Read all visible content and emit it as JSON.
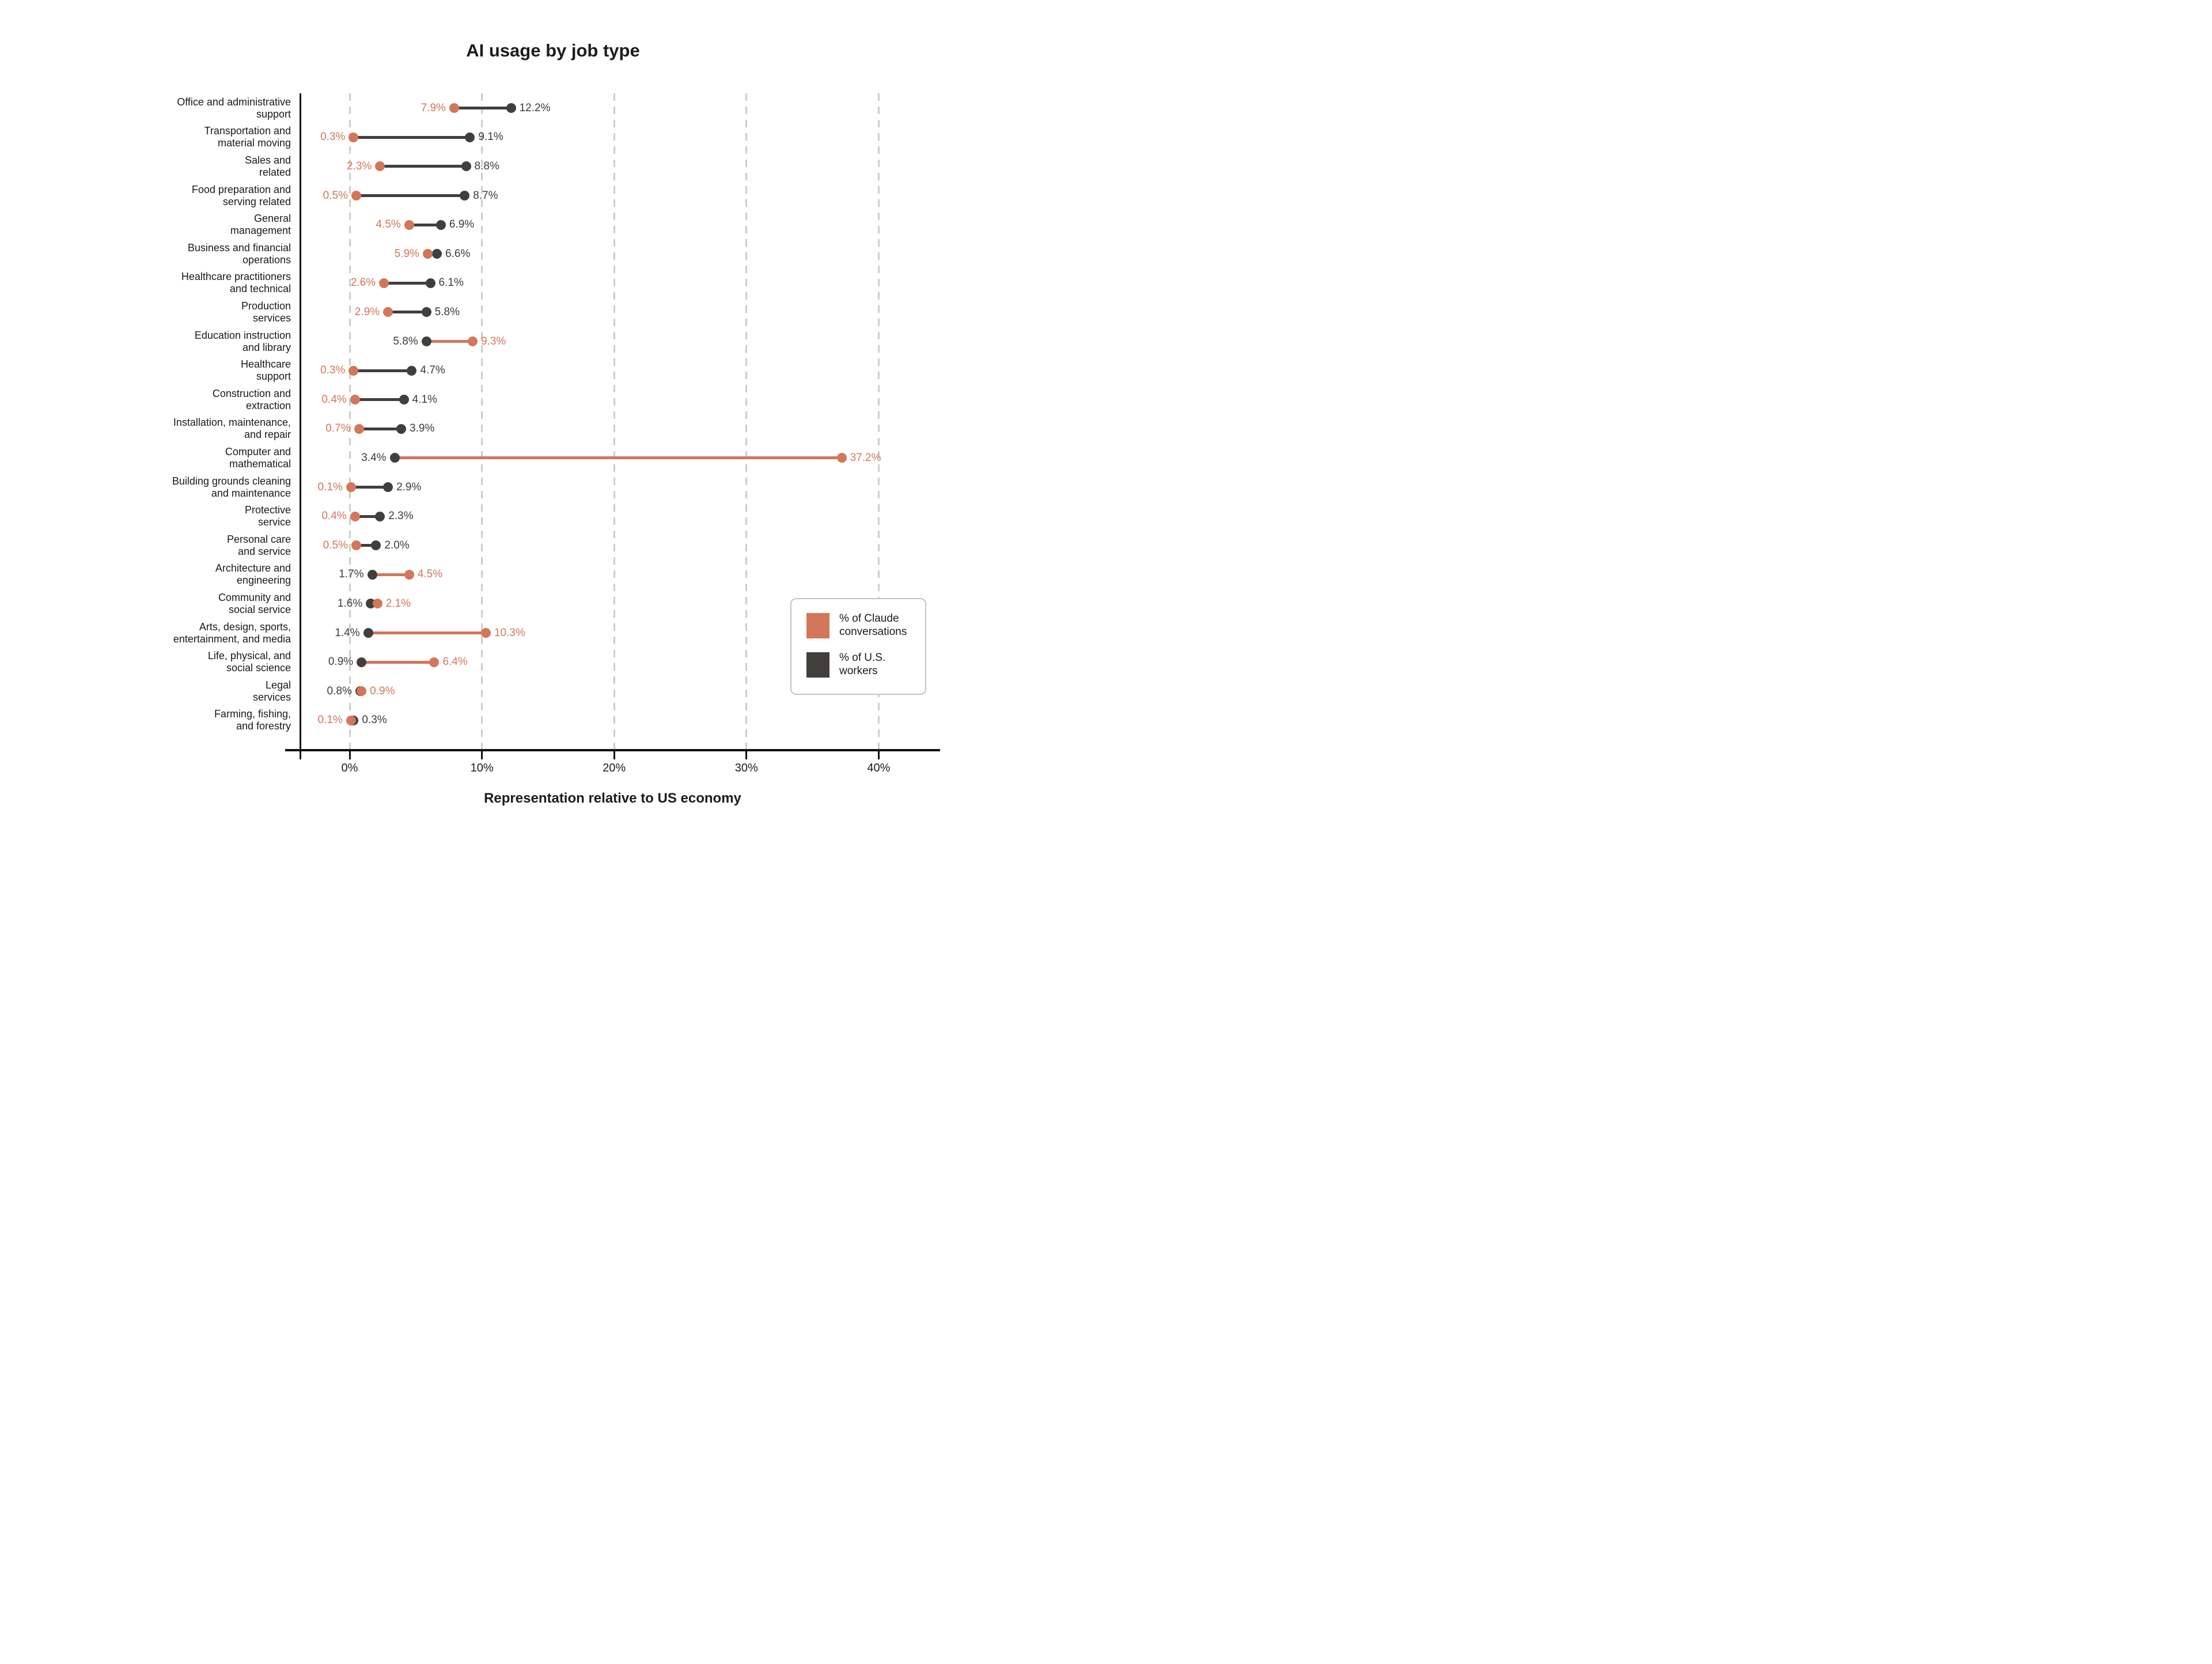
{
  "title": "AI usage by job type",
  "x_axis_label": "Representation relative to US economy",
  "colors": {
    "claude_orange": "#D3765A",
    "workers_dark": "#413F3B",
    "dark_text": "#3E3C38",
    "gridline": "#CDCDC9",
    "axis": "#0F0F0F",
    "background": "#FFFFFF",
    "legend_border": "#C4C4C0"
  },
  "legend": {
    "items": [
      {
        "label": "% of Claude conversations",
        "series": "claude",
        "color": "#D3765A"
      },
      {
        "label": "% of U.S. workers",
        "series": "workers",
        "color": "#413F3B"
      }
    ],
    "position": "lower-right"
  },
  "chart_data": {
    "type": "scatter",
    "variant": "dumbbell",
    "title": "AI usage by job type",
    "xlabel": "Representation relative to US economy",
    "ylabel": "",
    "xlim": [
      -3.75,
      44.2
    ],
    "x_ticks": [
      0,
      10,
      20,
      30,
      40
    ],
    "x_tick_labels": [
      "0%",
      "10%",
      "20%",
      "30%",
      "40%"
    ],
    "grid": "vertical-dashed",
    "legend_position": "lower-right",
    "connector_rule": "connector colored by larger value's series",
    "categories": [
      "Office and administrative\nsupport",
      "Transportation and\nmaterial moving",
      "Sales and\nrelated",
      "Food preparation and\nserving related",
      "General\nmanagement",
      "Business and financial\noperations",
      "Healthcare practitioners\nand technical",
      "Production\nservices",
      "Education instruction\nand library",
      "Healthcare\nsupport",
      "Construction and\nextraction",
      "Installation, maintenance,\nand repair",
      "Computer and\nmathematical",
      "Building grounds cleaning\nand maintenance",
      "Protective\nservice",
      "Personal care\nand service",
      "Architecture and\nengineering",
      "Community and\nsocial service",
      "Arts, design, sports,\nentertainment, and media",
      "Life, physical, and\nsocial science",
      "Legal\nservices",
      "Farming, fishing,\nand forestry"
    ],
    "series": [
      {
        "name": "% of Claude conversations",
        "color": "#D3765A",
        "values": [
          7.9,
          0.3,
          2.3,
          0.5,
          4.5,
          5.9,
          2.6,
          2.9,
          9.3,
          0.3,
          0.4,
          0.7,
          37.2,
          0.1,
          0.4,
          0.5,
          4.5,
          2.1,
          10.3,
          6.4,
          0.9,
          0.1
        ]
      },
      {
        "name": "% of U.S. workers",
        "color": "#413F3B",
        "values": [
          12.2,
          9.1,
          8.8,
          8.7,
          6.9,
          6.6,
          6.1,
          5.8,
          5.8,
          4.7,
          4.1,
          3.9,
          3.4,
          2.9,
          2.3,
          2.0,
          1.7,
          1.6,
          1.4,
          0.9,
          0.8,
          0.3
        ]
      }
    ],
    "point_label_format": "{value}%"
  }
}
